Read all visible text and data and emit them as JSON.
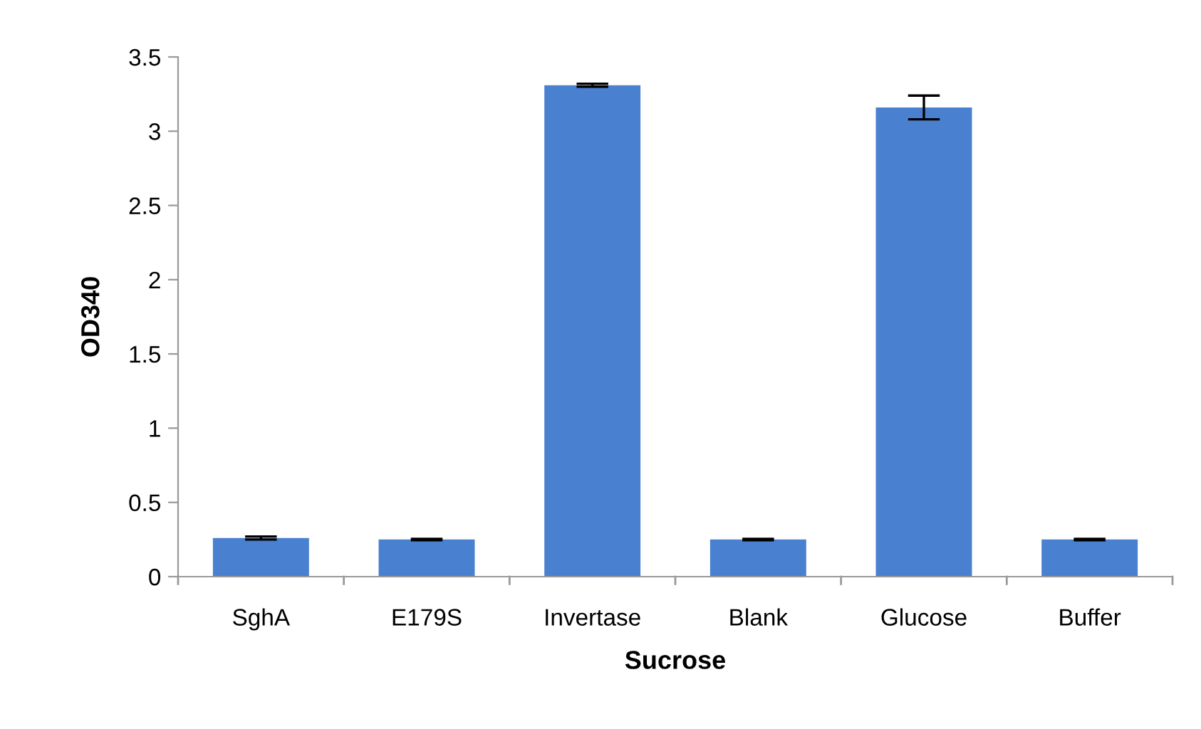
{
  "chart_data": {
    "type": "bar",
    "xlabel": "Sucrose",
    "ylabel": "OD340",
    "categories": [
      "SghA",
      "E179S",
      "Invertase",
      "Blank",
      "Glucose",
      "Buffer"
    ],
    "values": [
      0.26,
      0.25,
      3.31,
      0.25,
      3.16,
      0.25
    ],
    "errors": [
      0.01,
      0.005,
      0.01,
      0.005,
      0.08,
      0.005
    ],
    "color": "#4a80d0",
    "ylim": [
      0,
      3.5
    ],
    "yticks": [
      0,
      0.5,
      1,
      1.5,
      2,
      2.5,
      3,
      3.5
    ],
    "grid": false
  }
}
